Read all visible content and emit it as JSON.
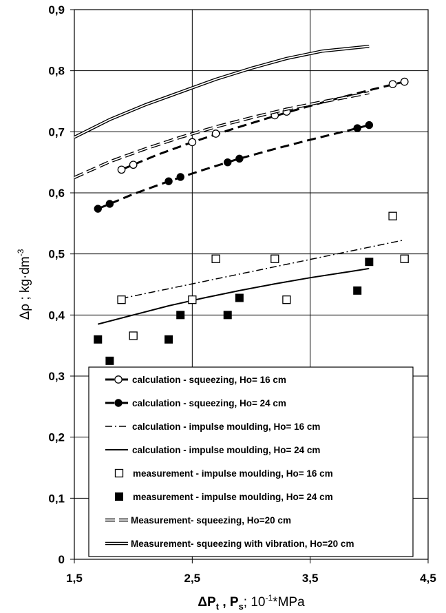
{
  "chart_data": {
    "type": "line",
    "title": "",
    "xlabel": "ΔPt , Ps; 10-1*MPa",
    "ylabel": "Δρ ; kg·dm-3",
    "xlim": [
      1.5,
      4.5
    ],
    "ylim": [
      0,
      0.9
    ],
    "x_ticks": [
      1.5,
      2.5,
      3.5,
      4.5
    ],
    "x_tick_labels": [
      "1,5",
      "2,5",
      "3,5",
      "4,5"
    ],
    "y_ticks": [
      0,
      0.1,
      0.2,
      0.3,
      0.4,
      0.5,
      0.6,
      0.7,
      0.8,
      0.9
    ],
    "y_tick_labels": [
      "0",
      "0,1",
      "0,2",
      "0,3",
      "0,4",
      "0,5",
      "0,6",
      "0,7",
      "0,8",
      "0,9"
    ],
    "grid": "major gridlines at labelled ticks",
    "legend_position": "inside, lower center",
    "series": [
      {
        "name": "calculation - squeezing, Ho= 16 cm",
        "style": "bold-dash",
        "marker": "open-circle",
        "x": [
          1.9,
          2.0,
          2.5,
          2.7,
          3.2,
          3.3,
          4.2,
          4.3
        ],
        "y": [
          0.638,
          0.646,
          0.683,
          0.697,
          0.727,
          0.733,
          0.778,
          0.782
        ],
        "line_x": [
          1.9,
          2.2,
          2.5,
          2.8,
          3.1,
          3.4,
          3.7,
          4.0,
          4.3
        ],
        "line_y": [
          0.638,
          0.662,
          0.683,
          0.702,
          0.72,
          0.737,
          0.753,
          0.768,
          0.782
        ]
      },
      {
        "name": "calculation - squeezing, Ho= 24 cm",
        "style": "bold-dash",
        "marker": "filled-circle",
        "x": [
          1.7,
          1.8,
          2.3,
          2.4,
          2.8,
          2.9,
          3.9,
          4.0
        ],
        "y": [
          0.574,
          0.582,
          0.619,
          0.626,
          0.65,
          0.656,
          0.706,
          0.711
        ],
        "line_x": [
          1.7,
          2.0,
          2.3,
          2.6,
          2.9,
          3.2,
          3.5,
          3.8,
          4.0
        ],
        "line_y": [
          0.574,
          0.598,
          0.619,
          0.638,
          0.656,
          0.672,
          0.687,
          0.701,
          0.711
        ]
      },
      {
        "name": "calculation - impulse moulding, Ho= 16 cm",
        "style": "dash-dot",
        "marker": "none",
        "x": [
          1.9,
          4.3
        ],
        "y": [
          0.427,
          0.523
        ]
      },
      {
        "name": "calculation - impulse moulding, Ho= 24 cm",
        "style": "solid",
        "marker": "none",
        "x": [
          1.7,
          2.0,
          2.3,
          2.6,
          2.9,
          3.2,
          3.5,
          3.8,
          4.0
        ],
        "y": [
          0.385,
          0.4,
          0.415,
          0.428,
          0.44,
          0.451,
          0.461,
          0.47,
          0.476
        ]
      },
      {
        "name": "measurement - impulse moulding, Ho= 16 cm",
        "style": "none",
        "marker": "open-square",
        "x": [
          1.9,
          2.0,
          2.5,
          2.7,
          3.2,
          3.3,
          4.2,
          4.3
        ],
        "y": [
          0.425,
          0.366,
          0.425,
          0.492,
          0.492,
          0.425,
          0.562,
          0.492
        ]
      },
      {
        "name": "measurement - impulse moulding, Ho= 24 cm",
        "style": "none",
        "marker": "filled-square",
        "x": [
          1.7,
          1.8,
          2.3,
          2.4,
          2.8,
          2.9,
          3.9,
          4.0
        ],
        "y": [
          0.36,
          0.325,
          0.36,
          0.4,
          0.4,
          0.428,
          0.44,
          0.487
        ]
      },
      {
        "name": "Measurement- squeezing, Ho=20 cm",
        "style": "double-dash",
        "marker": "none",
        "x": [
          1.5,
          1.8,
          2.1,
          2.4,
          2.7,
          3.0,
          3.3,
          3.6,
          3.9,
          4.0
        ],
        "y": [
          0.625,
          0.651,
          0.672,
          0.691,
          0.708,
          0.723,
          0.737,
          0.749,
          0.76,
          0.764
        ]
      },
      {
        "name": "Measurement- squeezing with vibration, Ho=20 cm",
        "style": "double",
        "marker": "none",
        "x": [
          1.5,
          1.8,
          2.1,
          2.4,
          2.7,
          3.0,
          3.3,
          3.6,
          3.9,
          4.0
        ],
        "y": [
          0.691,
          0.72,
          0.744,
          0.765,
          0.786,
          0.804,
          0.82,
          0.832,
          0.838,
          0.84
        ]
      }
    ]
  }
}
